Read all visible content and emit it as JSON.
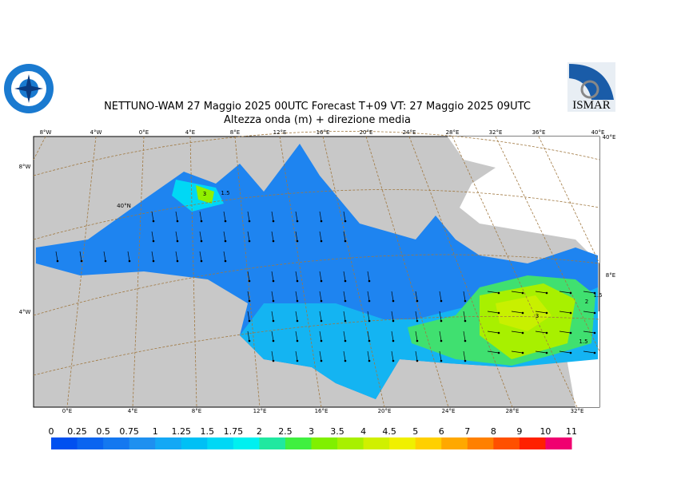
{
  "header": {
    "title": "NETTUNO-WAM  27   Maggio  2025 00UTC Forecast T+09 VT: 27   Maggio  2025 09UTC",
    "subtitle": "Altezza onda (m) + direzione media",
    "logo_right": "ISMAR"
  },
  "map": {
    "top_labels": [
      "8°W",
      "4°W",
      "0°E",
      "4°E",
      "8°E",
      "12°E",
      "16°E",
      "20°E",
      "24°E",
      "28°E",
      "32°E",
      "36°E",
      "40°E"
    ],
    "bottom_labels": [
      "0°E",
      "4°E",
      "8°E",
      "12°E",
      "16°E",
      "20°E",
      "24°E",
      "28°E",
      "32°E"
    ],
    "left_labels": [
      "8°W",
      "4°W"
    ],
    "right_labels": [
      "40°E",
      "8°E"
    ],
    "inner_labels": [
      "40°N"
    ],
    "contour_labels": [
      "3",
      "1.5",
      "3",
      "2",
      "1.5",
      "1.5"
    ]
  },
  "colorbar": {
    "labels": [
      "0",
      "0.25",
      "0.5",
      "0.75",
      "1",
      "1.25",
      "1.5",
      "1.75",
      "2",
      "2.5",
      "3",
      "3.5",
      "4",
      "4.5",
      "5",
      "6",
      "7",
      "8",
      "9",
      "10",
      "11"
    ],
    "colors": [
      "#0050f0",
      "#0a64f0",
      "#1478f0",
      "#1e90f0",
      "#14a8f5",
      "#00c0f5",
      "#00d8f5",
      "#00f0f0",
      "#20e8a0",
      "#40f040",
      "#80f000",
      "#a8f000",
      "#d0f000",
      "#f0f000",
      "#ffd000",
      "#ffa800",
      "#ff8000",
      "#ff5000",
      "#ff2000",
      "#f00070"
    ]
  }
}
